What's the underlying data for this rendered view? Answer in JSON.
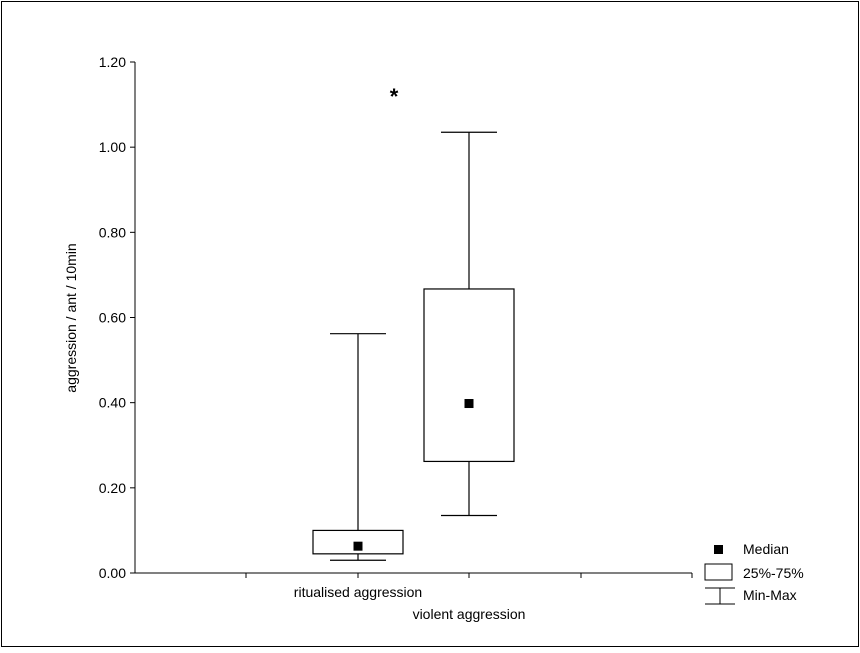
{
  "chart_data": {
    "type": "box",
    "ylabel": "aggression / ant / 10min",
    "ylim": [
      0,
      1.2
    ],
    "yticks": [
      "0.00",
      "0.20",
      "0.40",
      "0.60",
      "0.80",
      "1.00",
      "1.20"
    ],
    "categories": [
      "ritualised aggression",
      "violent aggression"
    ],
    "boxes": [
      {
        "category": "ritualised aggression",
        "min": 0.03,
        "q1": 0.045,
        "median": 0.063,
        "q3": 0.1,
        "max": 0.562
      },
      {
        "category": "violent aggression",
        "min": 0.135,
        "q1": 0.262,
        "median": 0.398,
        "q3": 0.667,
        "max": 1.035
      }
    ],
    "annotation": "*",
    "legend": {
      "position": "bottom-right",
      "median": "Median",
      "box": "25%-75%",
      "whisker": "Min-Max"
    }
  }
}
